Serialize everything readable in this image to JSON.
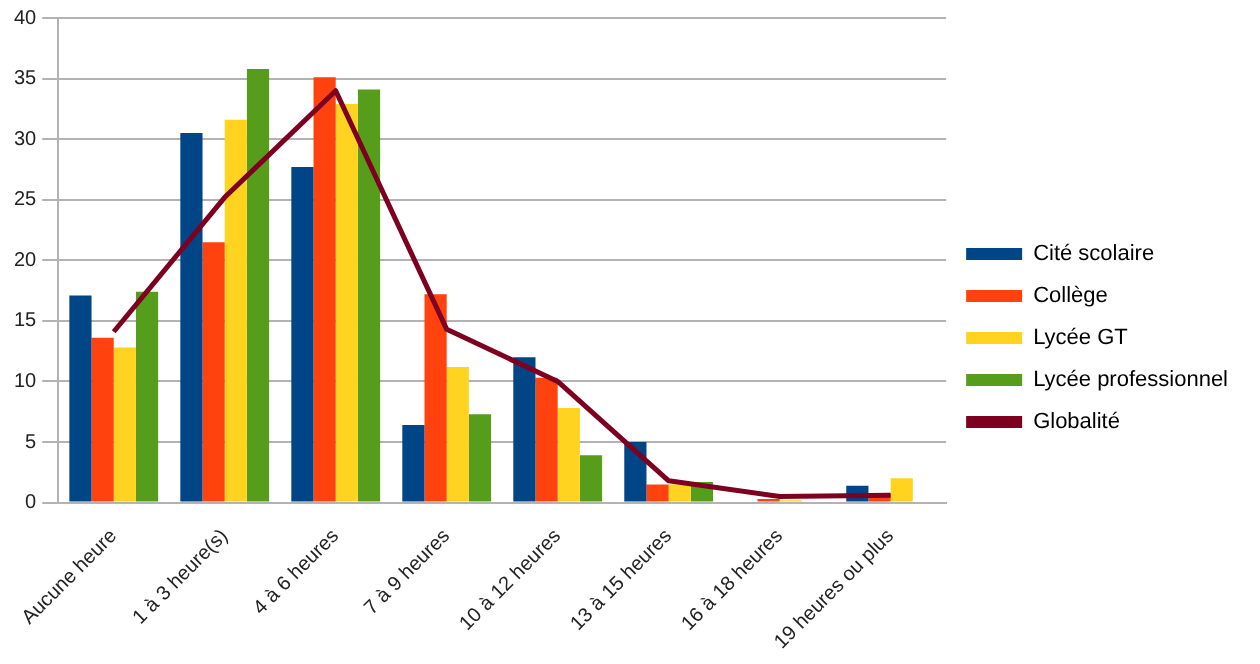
{
  "chart_data": {
    "type": "bar",
    "categories": [
      "Aucune heure",
      "1 à 3 heure(s)",
      "4 à 6 heures",
      "7 à 9 heures",
      "10 à 12 heures",
      "13 à 15 heures",
      "16 à 18 heures",
      "19 heures ou plus"
    ],
    "series": [
      {
        "name": "Cité scolaire",
        "color": "#004586",
        "values": [
          17.1,
          30.5,
          27.7,
          6.4,
          12.0,
          5.0,
          0,
          1.4
        ]
      },
      {
        "name": "Collège",
        "color": "#ff420e",
        "values": [
          13.6,
          21.5,
          35.1,
          17.2,
          10.3,
          1.5,
          0.3,
          0.7
        ]
      },
      {
        "name": "Lycée GT",
        "color": "#ffd320",
        "values": [
          12.8,
          31.6,
          32.9,
          11.2,
          7.8,
          1.5,
          0.2,
          2.0
        ]
      },
      {
        "name": "Lycée professionnel",
        "color": "#579d1c",
        "values": [
          17.4,
          35.8,
          34.1,
          7.3,
          3.9,
          1.7,
          0,
          0
        ]
      },
      {
        "name": "Globalité",
        "color": "#7e0021",
        "type": "line",
        "values": [
          14.1,
          25.2,
          34.0,
          14.3,
          10.0,
          1.8,
          0.5,
          0.6
        ]
      }
    ],
    "ylim": [
      0,
      40
    ],
    "yticks": [
      0,
      5,
      10,
      15,
      20,
      25,
      30,
      35,
      40
    ],
    "grid": "y",
    "legend": "right",
    "marker": "none"
  }
}
